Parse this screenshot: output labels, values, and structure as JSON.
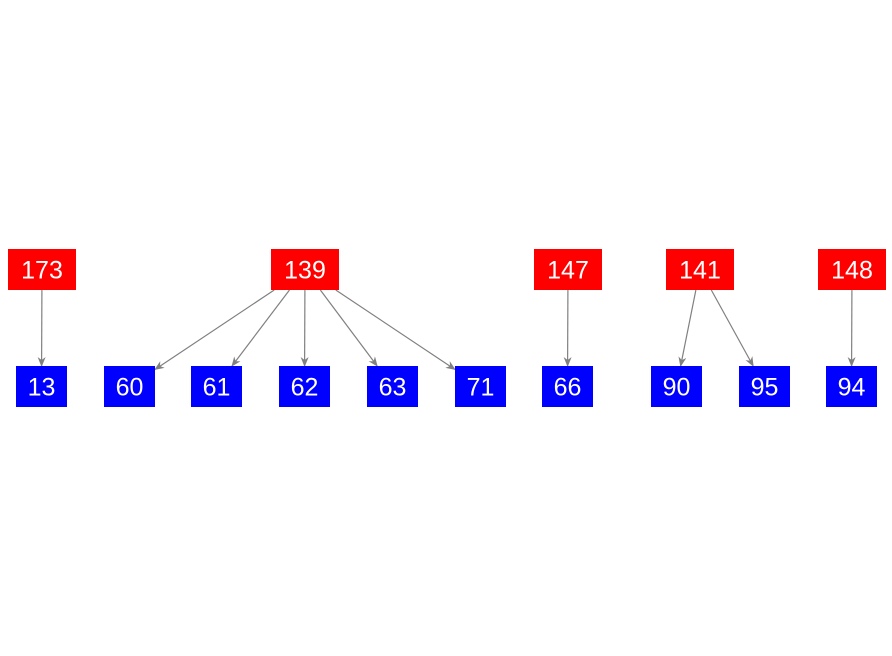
{
  "colors": {
    "parent": "#ff0000",
    "child": "#0000ff",
    "edge": "#808080",
    "text": "#ffffff"
  },
  "nodes": [
    {
      "id": "173",
      "label": "173",
      "kind": "parent"
    },
    {
      "id": "139",
      "label": "139",
      "kind": "parent"
    },
    {
      "id": "147",
      "label": "147",
      "kind": "parent"
    },
    {
      "id": "141",
      "label": "141",
      "kind": "parent"
    },
    {
      "id": "148",
      "label": "148",
      "kind": "parent"
    },
    {
      "id": "13",
      "label": "13",
      "kind": "child"
    },
    {
      "id": "60",
      "label": "60",
      "kind": "child"
    },
    {
      "id": "61",
      "label": "61",
      "kind": "child"
    },
    {
      "id": "62",
      "label": "62",
      "kind": "child"
    },
    {
      "id": "63",
      "label": "63",
      "kind": "child"
    },
    {
      "id": "71",
      "label": "71",
      "kind": "child"
    },
    {
      "id": "66",
      "label": "66",
      "kind": "child"
    },
    {
      "id": "90",
      "label": "90",
      "kind": "child"
    },
    {
      "id": "95",
      "label": "95",
      "kind": "child"
    },
    {
      "id": "94",
      "label": "94",
      "kind": "child"
    }
  ],
  "edges": [
    [
      "173",
      "13"
    ],
    [
      "139",
      "60"
    ],
    [
      "139",
      "61"
    ],
    [
      "139",
      "62"
    ],
    [
      "139",
      "63"
    ],
    [
      "139",
      "71"
    ],
    [
      "147",
      "66"
    ],
    [
      "141",
      "90"
    ],
    [
      "141",
      "95"
    ],
    [
      "148",
      "94"
    ]
  ]
}
